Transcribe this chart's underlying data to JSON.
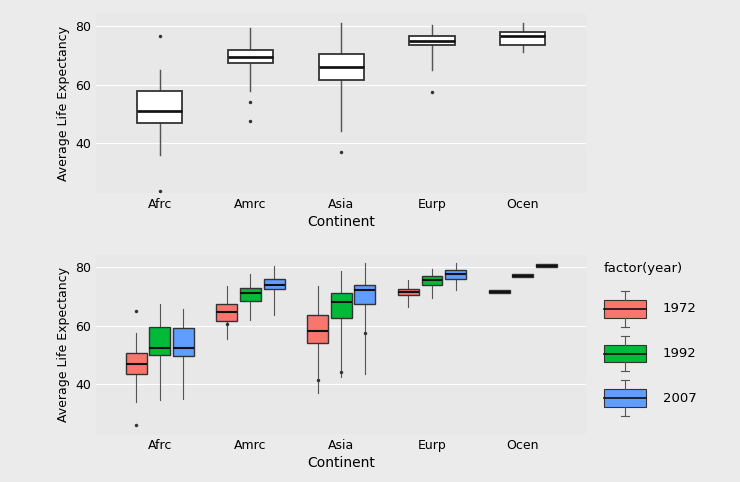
{
  "continents": [
    "Afrc",
    "Amrc",
    "Asia",
    "Eurp",
    "Ocen"
  ],
  "background_color": "#EBEBEB",
  "plot_bg": "#E8E8E8",
  "top_plot": {
    "boxes": {
      "Afrc": {
        "q1": 47.0,
        "median": 51.0,
        "q3": 58.0,
        "whisker_low": 36.0,
        "whisker_high": 65.0,
        "fliers": [
          23.5,
          76.5
        ]
      },
      "Amrc": {
        "q1": 67.5,
        "median": 69.5,
        "q3": 72.0,
        "whisker_low": 58.0,
        "whisker_high": 79.5,
        "fliers": [
          47.5,
          54.0
        ]
      },
      "Asia": {
        "q1": 61.5,
        "median": 66.0,
        "q3": 70.5,
        "whisker_low": 44.0,
        "whisker_high": 81.0,
        "fliers": [
          37.0
        ]
      },
      "Eurp": {
        "q1": 73.5,
        "median": 75.0,
        "q3": 76.5,
        "whisker_low": 65.0,
        "whisker_high": 80.5,
        "fliers": [
          57.5
        ]
      },
      "Ocen": {
        "q1": 73.5,
        "median": 76.5,
        "q3": 78.0,
        "whisker_low": 71.0,
        "whisker_high": 81.0,
        "fliers": []
      }
    },
    "ylim": [
      23,
      84
    ],
    "yticks": [
      40,
      60,
      80
    ],
    "ylabel": "Average Life Expectancy",
    "xlabel": "Continent"
  },
  "bottom_plot": {
    "years": [
      "1972",
      "1992",
      "2007"
    ],
    "colors": {
      "1972": "#F8766D",
      "1992": "#00BA38",
      "2007": "#619CFF"
    },
    "boxes": {
      "Afrc": {
        "1972": {
          "q1": 43.5,
          "median": 47.0,
          "q3": 50.5,
          "whisker_low": 34.0,
          "whisker_high": 57.5,
          "fliers": [
            26.0,
            65.0
          ]
        },
        "1992": {
          "q1": 50.0,
          "median": 52.5,
          "q3": 59.5,
          "whisker_low": 34.5,
          "whisker_high": 67.5,
          "fliers": []
        },
        "2007": {
          "q1": 49.5,
          "median": 52.5,
          "q3": 59.0,
          "whisker_low": 35.0,
          "whisker_high": 65.5,
          "fliers": []
        }
      },
      "Amrc": {
        "1972": {
          "q1": 61.5,
          "median": 64.5,
          "q3": 67.5,
          "whisker_low": 55.5,
          "whisker_high": 73.5,
          "fliers": [
            60.5
          ]
        },
        "1992": {
          "q1": 68.5,
          "median": 71.0,
          "q3": 73.0,
          "whisker_low": 62.0,
          "whisker_high": 77.5,
          "fliers": []
        },
        "2007": {
          "q1": 72.5,
          "median": 74.0,
          "q3": 76.0,
          "whisker_low": 63.5,
          "whisker_high": 80.5,
          "fliers": []
        }
      },
      "Asia": {
        "1972": {
          "q1": 54.0,
          "median": 58.0,
          "q3": 63.5,
          "whisker_low": 37.0,
          "whisker_high": 73.5,
          "fliers": [
            41.5
          ]
        },
        "1992": {
          "q1": 62.5,
          "median": 68.0,
          "q3": 71.0,
          "whisker_low": 42.5,
          "whisker_high": 78.5,
          "fliers": [
            44.0
          ]
        },
        "2007": {
          "q1": 67.5,
          "median": 72.0,
          "q3": 74.0,
          "whisker_low": 43.5,
          "whisker_high": 81.5,
          "fliers": [
            57.5
          ]
        }
      },
      "Eurp": {
        "1972": {
          "q1": 70.5,
          "median": 71.5,
          "q3": 72.5,
          "whisker_low": 66.5,
          "whisker_high": 75.5,
          "fliers": []
        },
        "1992": {
          "q1": 74.0,
          "median": 75.5,
          "q3": 77.0,
          "whisker_low": 69.5,
          "whisker_high": 79.5,
          "fliers": []
        },
        "2007": {
          "q1": 76.0,
          "median": 77.5,
          "q3": 79.0,
          "whisker_low": 72.0,
          "whisker_high": 81.5,
          "fliers": []
        }
      },
      "Ocen": {
        "1972": {
          "q1": 71.0,
          "median": 71.5,
          "q3": 72.0,
          "whisker_low": 71.0,
          "whisker_high": 72.0,
          "fliers": []
        },
        "1992": {
          "q1": 76.5,
          "median": 77.0,
          "q3": 77.5,
          "whisker_low": 76.5,
          "whisker_high": 77.5,
          "fliers": []
        },
        "2007": {
          "q1": 80.0,
          "median": 80.5,
          "q3": 81.0,
          "whisker_low": 80.0,
          "whisker_high": 81.0,
          "fliers": []
        }
      }
    },
    "ylim": [
      23,
      84
    ],
    "yticks": [
      40,
      60,
      80
    ],
    "ylabel": "Average Life Expectancy",
    "xlabel": "Continent"
  }
}
